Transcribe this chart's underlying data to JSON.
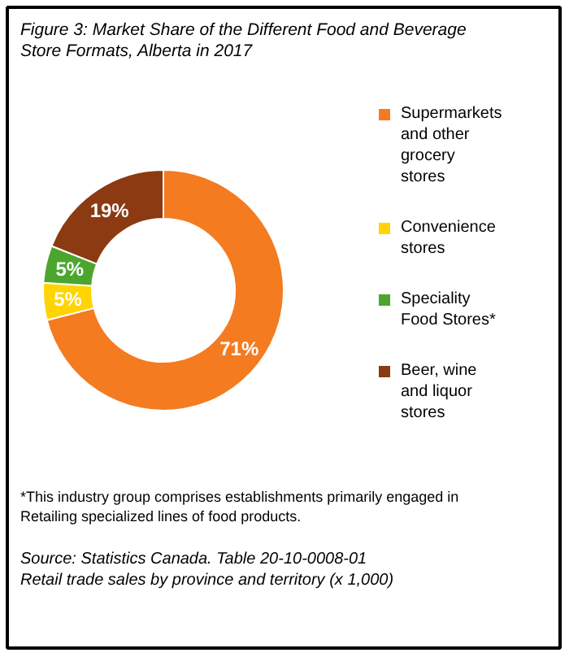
{
  "chart_data": {
    "type": "donut",
    "title": "Figure 3: Market Share of the Different Food and Beverage Store Formats, Alberta in 2017",
    "categories": [
      "Supermarkets and other grocery stores",
      "Convenience stores",
      "Speciality Food Stores*",
      "Beer, wine and liquor stores"
    ],
    "values": [
      71,
      5,
      5,
      19
    ],
    "colors": [
      "#f47b20",
      "#ffd400",
      "#4ca62e",
      "#8b3a12"
    ],
    "value_labels": [
      "71%",
      "5%",
      "5%",
      "19%"
    ],
    "legend": "right",
    "annotations": [
      "*This industry group comprises establishments primarily engaged in Retailing specialized lines of food products.",
      "Source: Statistics Canada. Table 20-10-0008-01",
      "Retail trade sales by province and territory (x 1,000)"
    ]
  }
}
